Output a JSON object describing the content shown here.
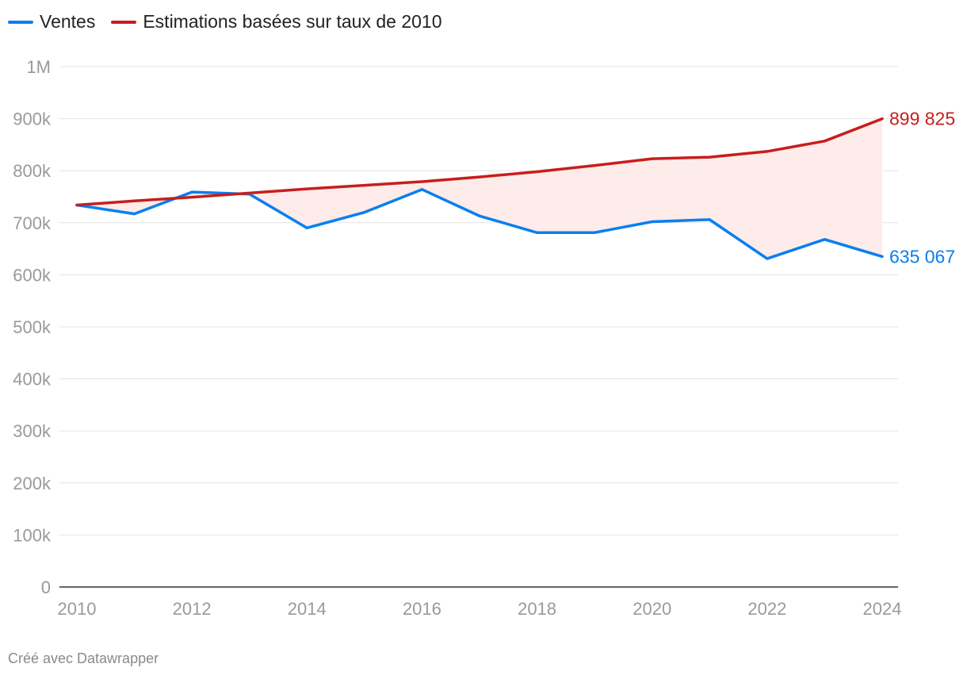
{
  "chart_data": {
    "type": "line",
    "x": [
      2010,
      2011,
      2012,
      2013,
      2014,
      2015,
      2016,
      2017,
      2018,
      2019,
      2020,
      2021,
      2022,
      2023,
      2024
    ],
    "series": [
      {
        "name": "Ventes",
        "color": "#0a7ff0",
        "values": [
          734000,
          717000,
          759000,
          755000,
          690000,
          720000,
          764000,
          713000,
          681000,
          681000,
          702000,
          706000,
          631000,
          668000,
          635067
        ],
        "end_label": "635 067"
      },
      {
        "name": "Estimations basées sur taux de 2010",
        "color": "#c71e1d",
        "values": [
          734000,
          742000,
          749000,
          757000,
          765000,
          772000,
          779000,
          788000,
          798000,
          810000,
          823000,
          826000,
          837000,
          857000,
          899825
        ],
        "end_label": "899 825"
      }
    ],
    "gap_fill_color": "#fdecea",
    "ylim": [
      0,
      1000000
    ],
    "yticks": [
      0,
      100000,
      200000,
      300000,
      400000,
      500000,
      600000,
      700000,
      800000,
      900000,
      1000000
    ],
    "ytick_labels": [
      "0",
      "100k",
      "200k",
      "300k",
      "400k",
      "500k",
      "600k",
      "700k",
      "800k",
      "900k",
      "1M"
    ],
    "xticks": [
      2010,
      2012,
      2014,
      2016,
      2018,
      2020,
      2022,
      2024
    ],
    "xtick_labels": [
      "2010",
      "2012",
      "2014",
      "2016",
      "2018",
      "2020",
      "2022",
      "2024"
    ],
    "grid": true,
    "legend_position": "top-left",
    "title": "",
    "xlabel": "",
    "ylabel": ""
  },
  "footer": {
    "credit": "Créé avec Datawrapper"
  }
}
